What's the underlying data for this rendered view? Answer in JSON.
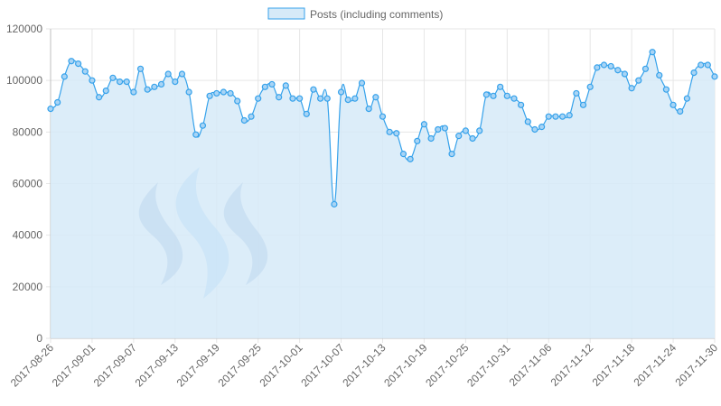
{
  "chart_data": {
    "type": "area",
    "title": "",
    "xlabel": "",
    "ylabel": "",
    "ylim": [
      0,
      120000
    ],
    "y_ticks": [
      0,
      20000,
      40000,
      60000,
      80000,
      100000,
      120000
    ],
    "y_tick_labels": [
      "0",
      "20000",
      "40000",
      "60000",
      "80000",
      "100000",
      "120000"
    ],
    "x_tick_labels": [
      "2017-08-26",
      "2017-09-01",
      "2017-09-07",
      "2017-09-13",
      "2017-09-19",
      "2017-09-25",
      "2017-10-01",
      "2017-10-07",
      "2017-10-13",
      "2017-10-19",
      "2017-10-25",
      "2017-10-31",
      "2017-11-06",
      "2017-11-12",
      "2017-11-18",
      "2017-11-24",
      "2017-11-30"
    ],
    "x_start": "2017-08-26",
    "x_end": "2017-11-30",
    "grid": true,
    "legend": "top-center",
    "colors": {
      "line": "#36a2eb",
      "fill": "#d6eaf8",
      "grid": "#e6e6e6",
      "logo_dark": "#6c8fc7",
      "logo_light": "#7fbbf3"
    },
    "watermark": "steem-logo",
    "series": [
      {
        "name": "Posts (including comments)",
        "values": [
          89000,
          91500,
          101500,
          107500,
          106500,
          103500,
          100000,
          93500,
          96000,
          101000,
          99500,
          99500,
          95500,
          104500,
          96500,
          97500,
          98500,
          102500,
          99500,
          102500,
          95500,
          79000,
          82500,
          94000,
          95000,
          95500,
          95000,
          92000,
          84500,
          86000,
          93000,
          97500,
          98500,
          93500,
          98000,
          93000,
          93000,
          87000,
          96500,
          93000,
          93000,
          52000,
          95500,
          92500,
          93000,
          99000,
          89000,
          93500,
          86000,
          80000,
          79500,
          71500,
          69500,
          76500,
          83000,
          77500,
          81000,
          81500,
          71500,
          78500,
          80500,
          77500,
          80500,
          94500,
          94000,
          97500,
          94000,
          93000,
          90500,
          84000,
          81000,
          82000,
          86000,
          86000,
          86000,
          86500,
          95000,
          90500,
          97500,
          105000,
          106000,
          105500,
          104000,
          102500,
          97000,
          100000,
          104500,
          111000,
          102000,
          96500,
          90500,
          88000,
          93000,
          103000,
          106000,
          106000,
          101500
        ]
      }
    ]
  }
}
